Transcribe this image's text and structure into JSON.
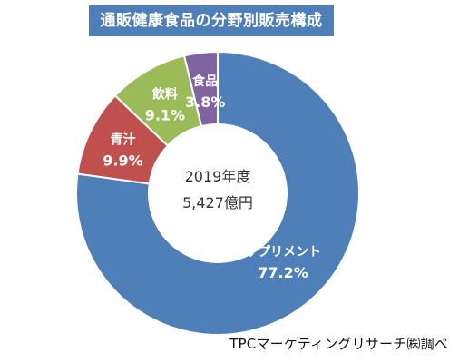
{
  "chart_data": {
    "type": "pie",
    "title": "通販健康食品の分野別販売構成",
    "center_label": {
      "line1": "2019年度",
      "line2": "5,427億円"
    },
    "slices": [
      {
        "label": "サプリメント",
        "value": 77.2,
        "value_text": "77.2%",
        "color": "#4f7fb9"
      },
      {
        "label": "青汁",
        "value": 9.9,
        "value_text": "9.9%",
        "color": "#c0504d"
      },
      {
        "label": "飲料",
        "value": 9.1,
        "value_text": "9.1%",
        "color": "#9bbb59"
      },
      {
        "label": "食品",
        "value": 3.8,
        "value_text": "3.8%",
        "color": "#8064a2"
      }
    ]
  },
  "footer": {
    "credit": "TPCマーケティングリサーチ㈱調べ"
  }
}
